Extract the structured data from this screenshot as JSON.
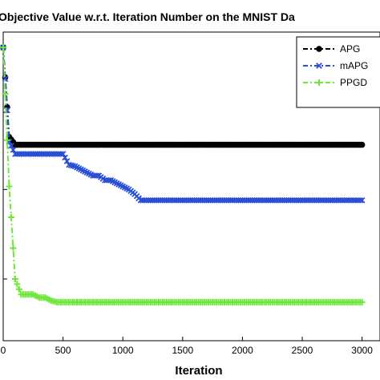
{
  "chart_data": {
    "type": "line",
    "title": "Objective Value w.r.t. Iteration Number on the MNIST Da",
    "xlabel": "Iteration",
    "ylabel": "",
    "xlim": [
      0,
      3150
    ],
    "ylim": [
      0,
      1
    ],
    "x_ticks": [
      0,
      500,
      1000,
      1500,
      2000,
      2500,
      3000
    ],
    "x_tick_labels": [
      "0",
      "500",
      "1000",
      "1500",
      "2000",
      "2500",
      "3000"
    ],
    "y_ticks": [
      0.2,
      0.49,
      0.74
    ],
    "grid": false,
    "legend_position": "top-right",
    "series": [
      {
        "name": "APG",
        "color": "#000000",
        "marker": "circle",
        "linestyle": "dash-dot",
        "x": [
          0,
          50,
          100,
          150,
          200,
          250,
          300,
          350,
          400,
          450,
          500,
          550,
          600,
          650,
          700,
          750,
          800,
          850,
          900,
          950,
          1000,
          1050,
          1100,
          1150,
          1200,
          1250,
          1300,
          1350,
          1400,
          1450,
          1500,
          1550,
          1600,
          1650,
          1700,
          1750,
          1800,
          1850,
          1900,
          1950,
          2000,
          2050,
          2100,
          2150,
          2200,
          2250,
          2300,
          2350,
          2400,
          2450,
          2500,
          2550,
          2600,
          2650,
          2700,
          2750,
          2800,
          2850,
          2900,
          2950,
          3000
        ],
        "y": [
          0.95,
          0.66,
          0.635,
          0.635,
          0.635,
          0.635,
          0.635,
          0.635,
          0.635,
          0.635,
          0.635,
          0.635,
          0.635,
          0.635,
          0.635,
          0.635,
          0.635,
          0.635,
          0.635,
          0.635,
          0.635,
          0.635,
          0.635,
          0.635,
          0.635,
          0.635,
          0.635,
          0.635,
          0.635,
          0.635,
          0.635,
          0.635,
          0.635,
          0.635,
          0.635,
          0.635,
          0.635,
          0.635,
          0.635,
          0.635,
          0.635,
          0.635,
          0.635,
          0.635,
          0.635,
          0.635,
          0.635,
          0.635,
          0.635,
          0.635,
          0.635,
          0.635,
          0.635,
          0.635,
          0.635,
          0.635,
          0.635,
          0.635,
          0.635,
          0.635,
          0.635
        ]
      },
      {
        "name": "mAPG",
        "color": "#2a4fd6",
        "marker": "x",
        "linestyle": "dash-dot",
        "x": [
          0,
          50,
          100,
          150,
          200,
          250,
          300,
          350,
          400,
          450,
          500,
          550,
          600,
          650,
          700,
          750,
          800,
          850,
          900,
          950,
          1000,
          1050,
          1100,
          1150,
          1200,
          1250,
          1300,
          1350,
          1400,
          1450,
          1500,
          1550,
          1600,
          1650,
          1700,
          1750,
          1800,
          1850,
          1900,
          1950,
          2000,
          2050,
          2100,
          2150,
          2200,
          2250,
          2300,
          2350,
          2400,
          2450,
          2500,
          2550,
          2600,
          2650,
          2700,
          2750,
          2800,
          2850,
          2900,
          2950,
          3000
        ],
        "y": [
          0.95,
          0.645,
          0.605,
          0.605,
          0.605,
          0.605,
          0.605,
          0.605,
          0.605,
          0.605,
          0.605,
          0.57,
          0.565,
          0.555,
          0.545,
          0.535,
          0.535,
          0.52,
          0.52,
          0.51,
          0.5,
          0.49,
          0.475,
          0.455,
          0.455,
          0.455,
          0.455,
          0.455,
          0.455,
          0.455,
          0.455,
          0.455,
          0.455,
          0.455,
          0.455,
          0.455,
          0.455,
          0.455,
          0.455,
          0.455,
          0.455,
          0.455,
          0.455,
          0.455,
          0.455,
          0.455,
          0.455,
          0.455,
          0.455,
          0.455,
          0.455,
          0.455,
          0.455,
          0.455,
          0.455,
          0.455,
          0.455,
          0.455,
          0.455,
          0.455,
          0.455
        ]
      },
      {
        "name": "PPGD",
        "color": "#6ee63a",
        "marker": "plus",
        "linestyle": "dash-dot",
        "x": [
          0,
          50,
          100,
          150,
          200,
          250,
          300,
          350,
          400,
          450,
          500,
          550,
          600,
          650,
          700,
          750,
          800,
          850,
          900,
          950,
          1000,
          1050,
          1100,
          1150,
          1200,
          1250,
          1300,
          1350,
          1400,
          1450,
          1500,
          1550,
          1600,
          1650,
          1700,
          1750,
          1800,
          1850,
          1900,
          1950,
          2000,
          2050,
          2100,
          2150,
          2200,
          2250,
          2300,
          2350,
          2400,
          2450,
          2500,
          2550,
          2600,
          2650,
          2700,
          2750,
          2800,
          2850,
          2900,
          2950,
          3000
        ],
        "y": [
          0.95,
          0.5,
          0.2,
          0.15,
          0.15,
          0.15,
          0.14,
          0.14,
          0.13,
          0.125,
          0.125,
          0.125,
          0.125,
          0.125,
          0.125,
          0.125,
          0.125,
          0.125,
          0.125,
          0.125,
          0.125,
          0.125,
          0.125,
          0.125,
          0.125,
          0.125,
          0.125,
          0.125,
          0.125,
          0.125,
          0.125,
          0.125,
          0.125,
          0.125,
          0.125,
          0.125,
          0.125,
          0.125,
          0.125,
          0.125,
          0.125,
          0.125,
          0.125,
          0.125,
          0.125,
          0.125,
          0.125,
          0.125,
          0.125,
          0.125,
          0.125,
          0.125,
          0.125,
          0.125,
          0.125,
          0.125,
          0.125,
          0.125,
          0.125,
          0.125,
          0.125
        ]
      }
    ]
  }
}
